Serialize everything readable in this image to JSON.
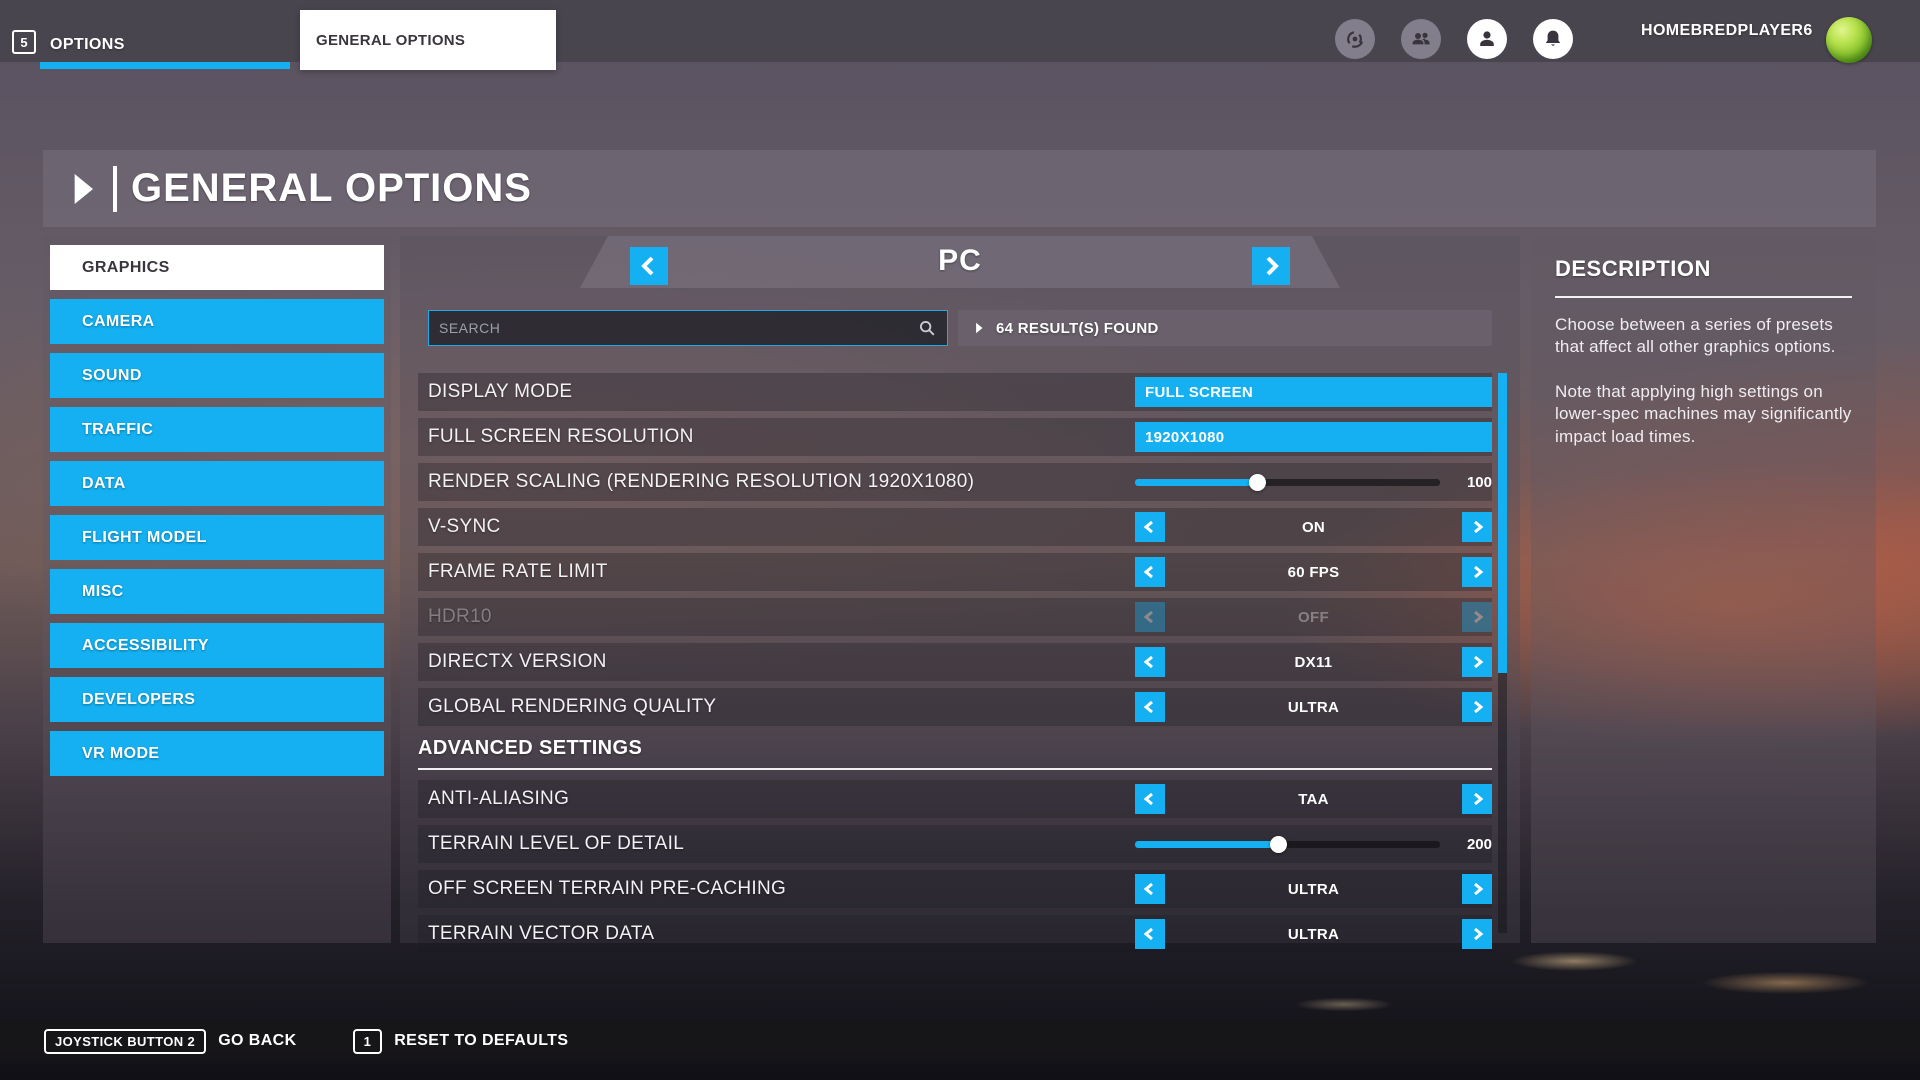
{
  "colors": {
    "accent": "#14b0f1"
  },
  "topbar": {
    "badge": "5",
    "tab_options": "OPTIONS",
    "tab_general": "GENERAL OPTIONS",
    "player": "HOMEBREDPLAYER6"
  },
  "header": {
    "title": "GENERAL OPTIONS"
  },
  "sidebar": {
    "items": [
      {
        "label": "GRAPHICS",
        "active": true
      },
      {
        "label": "CAMERA",
        "active": false
      },
      {
        "label": "SOUND",
        "active": false
      },
      {
        "label": "TRAFFIC",
        "active": false
      },
      {
        "label": "DATA",
        "active": false
      },
      {
        "label": "FLIGHT MODEL",
        "active": false
      },
      {
        "label": "MISC",
        "active": false
      },
      {
        "label": "ACCESSIBILITY",
        "active": false
      },
      {
        "label": "DEVELOPERS",
        "active": false
      },
      {
        "label": "VR MODE",
        "active": false
      }
    ]
  },
  "preset": {
    "value": "PC"
  },
  "search": {
    "placeholder": "SEARCH",
    "results": "64 RESULT(S) FOUND"
  },
  "settings": {
    "rows": [
      {
        "type": "dropdown",
        "label": "DISPLAY MODE",
        "value": "FULL SCREEN"
      },
      {
        "type": "dropdown",
        "label": "FULL SCREEN RESOLUTION",
        "value": "1920X1080"
      },
      {
        "type": "slider",
        "label": "RENDER SCALING (RENDERING RESOLUTION 1920X1080)",
        "value": "100",
        "fill_pct": 40
      },
      {
        "type": "stepper",
        "label": "V-SYNC",
        "value": "ON"
      },
      {
        "type": "stepper",
        "label": "FRAME RATE LIMIT",
        "value": "60 FPS"
      },
      {
        "type": "stepper",
        "label": "HDR10",
        "value": "OFF",
        "disabled": true
      },
      {
        "type": "stepper",
        "label": "DIRECTX VERSION",
        "value": "DX11"
      },
      {
        "type": "stepper",
        "label": "GLOBAL RENDERING QUALITY",
        "value": "ULTRA"
      },
      {
        "type": "section",
        "label": "ADVANCED SETTINGS"
      },
      {
        "type": "stepper",
        "label": "ANTI-ALIASING",
        "value": "TAA"
      },
      {
        "type": "slider",
        "label": "TERRAIN LEVEL OF DETAIL",
        "value": "200",
        "fill_pct": 47
      },
      {
        "type": "stepper",
        "label": "OFF SCREEN TERRAIN PRE-CACHING",
        "value": "ULTRA"
      },
      {
        "type": "stepper",
        "label": "TERRAIN VECTOR DATA",
        "value": "ULTRA"
      }
    ]
  },
  "description": {
    "title": "DESCRIPTION",
    "paragraphs": [
      "Choose between a series of presets that affect all other graphics options.",
      "Note that applying high settings on lower-spec machines may significantly impact load times."
    ]
  },
  "footer": {
    "items": [
      {
        "key": "JOYSTICK BUTTON 2",
        "label": "GO BACK"
      },
      {
        "key": "1",
        "label": "RESET TO DEFAULTS"
      }
    ]
  }
}
